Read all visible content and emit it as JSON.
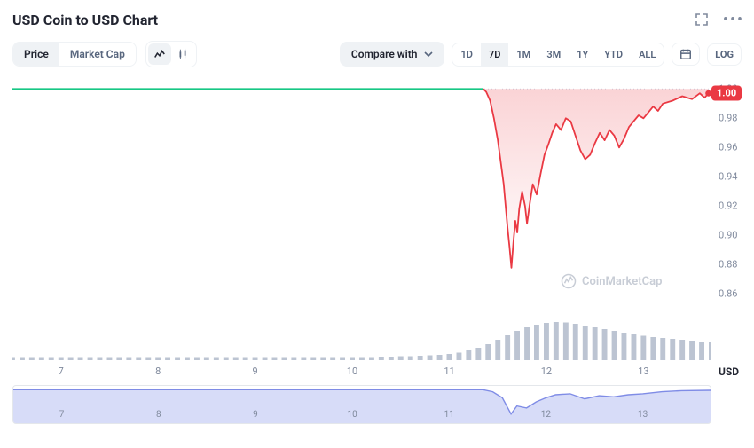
{
  "header": {
    "title": "USD Coin to USD Chart"
  },
  "toolbar": {
    "view_tabs": [
      "Price",
      "Market Cap"
    ],
    "view_active": "Price",
    "compare_label": "Compare with",
    "ranges": [
      "1D",
      "7D",
      "1M",
      "3M",
      "1Y",
      "YTD",
      "ALL"
    ],
    "range_active": "7D",
    "scale_label": "LOG"
  },
  "chart": {
    "type": "line",
    "x_domain": [
      6.5,
      13.7
    ],
    "y_domain": [
      0.85,
      1.005
    ],
    "ylabel_side": "right",
    "y_ticks": [
      1.0,
      0.98,
      0.96,
      0.94,
      0.92,
      0.9,
      0.88,
      0.86
    ],
    "x_ticks": [
      7,
      8,
      9,
      10,
      11,
      12,
      13
    ],
    "current_price_label": "1.00",
    "watermark_text": "CoinMarketCap",
    "colors": {
      "flat_line": "#16c784",
      "main_line": "#ea3943",
      "area_top": "rgba(234,57,67,0.22)",
      "area_bottom": "rgba(234,57,67,0.00)",
      "grid_dots": "#cfd6e4",
      "volume_bar": "#a6b0c3",
      "minimap_fill": "#b7bff2",
      "minimap_line": "#7f8ce6",
      "background": "#ffffff"
    },
    "green_flat_value": 1.0,
    "red_start_x": 11.35,
    "red_points": [
      [
        11.35,
        1.0
      ],
      [
        11.38,
        0.998
      ],
      [
        11.42,
        0.992
      ],
      [
        11.46,
        0.98
      ],
      [
        11.5,
        0.965
      ],
      [
        11.53,
        0.95
      ],
      [
        11.56,
        0.935
      ],
      [
        11.58,
        0.92
      ],
      [
        11.6,
        0.905
      ],
      [
        11.62,
        0.892
      ],
      [
        11.64,
        0.878
      ],
      [
        11.66,
        0.895
      ],
      [
        11.68,
        0.91
      ],
      [
        11.7,
        0.902
      ],
      [
        11.72,
        0.918
      ],
      [
        11.75,
        0.93
      ],
      [
        11.78,
        0.92
      ],
      [
        11.8,
        0.908
      ],
      [
        11.83,
        0.922
      ],
      [
        11.86,
        0.935
      ],
      [
        11.9,
        0.928
      ],
      [
        11.94,
        0.942
      ],
      [
        11.98,
        0.955
      ],
      [
        12.02,
        0.962
      ],
      [
        12.06,
        0.97
      ],
      [
        12.1,
        0.976
      ],
      [
        12.15,
        0.972
      ],
      [
        12.2,
        0.98
      ],
      [
        12.25,
        0.978
      ],
      [
        12.3,
        0.968
      ],
      [
        12.35,
        0.958
      ],
      [
        12.4,
        0.952
      ],
      [
        12.45,
        0.955
      ],
      [
        12.5,
        0.963
      ],
      [
        12.55,
        0.97
      ],
      [
        12.6,
        0.965
      ],
      [
        12.65,
        0.972
      ],
      [
        12.7,
        0.968
      ],
      [
        12.75,
        0.96
      ],
      [
        12.8,
        0.966
      ],
      [
        12.85,
        0.974
      ],
      [
        12.9,
        0.978
      ],
      [
        12.95,
        0.982
      ],
      [
        13.0,
        0.98
      ],
      [
        13.05,
        0.984
      ],
      [
        13.1,
        0.988
      ],
      [
        13.15,
        0.985
      ],
      [
        13.2,
        0.99
      ],
      [
        13.3,
        0.992
      ],
      [
        13.4,
        0.995
      ],
      [
        13.5,
        0.993
      ],
      [
        13.58,
        0.997
      ],
      [
        13.63,
        0.994
      ],
      [
        13.67,
        0.997
      ]
    ],
    "volume_y_domain": [
      0,
      1
    ],
    "volume_bars": [
      [
        6.5,
        0.07
      ],
      [
        6.6,
        0.07
      ],
      [
        6.7,
        0.07
      ],
      [
        6.8,
        0.07
      ],
      [
        6.9,
        0.07
      ],
      [
        7.0,
        0.07
      ],
      [
        7.1,
        0.07
      ],
      [
        7.2,
        0.07
      ],
      [
        7.3,
        0.07
      ],
      [
        7.4,
        0.07
      ],
      [
        7.5,
        0.07
      ],
      [
        7.6,
        0.07
      ],
      [
        7.7,
        0.07
      ],
      [
        7.8,
        0.07
      ],
      [
        7.9,
        0.07
      ],
      [
        8.0,
        0.07
      ],
      [
        8.1,
        0.07
      ],
      [
        8.2,
        0.07
      ],
      [
        8.3,
        0.07
      ],
      [
        8.4,
        0.07
      ],
      [
        8.5,
        0.07
      ],
      [
        8.6,
        0.07
      ],
      [
        8.7,
        0.07
      ],
      [
        8.8,
        0.07
      ],
      [
        8.9,
        0.07
      ],
      [
        9.0,
        0.07
      ],
      [
        9.1,
        0.07
      ],
      [
        9.2,
        0.07
      ],
      [
        9.3,
        0.07
      ],
      [
        9.4,
        0.07
      ],
      [
        9.5,
        0.07
      ],
      [
        9.6,
        0.07
      ],
      [
        9.7,
        0.07
      ],
      [
        9.8,
        0.07
      ],
      [
        9.9,
        0.07
      ],
      [
        10.0,
        0.07
      ],
      [
        10.1,
        0.07
      ],
      [
        10.2,
        0.07
      ],
      [
        10.3,
        0.08
      ],
      [
        10.4,
        0.08
      ],
      [
        10.5,
        0.09
      ],
      [
        10.6,
        0.09
      ],
      [
        10.7,
        0.1
      ],
      [
        10.8,
        0.11
      ],
      [
        10.9,
        0.12
      ],
      [
        11.0,
        0.14
      ],
      [
        11.1,
        0.17
      ],
      [
        11.2,
        0.22
      ],
      [
        11.3,
        0.28
      ],
      [
        11.4,
        0.36
      ],
      [
        11.5,
        0.46
      ],
      [
        11.6,
        0.56
      ],
      [
        11.7,
        0.66
      ],
      [
        11.8,
        0.74
      ],
      [
        11.9,
        0.8
      ],
      [
        12.0,
        0.84
      ],
      [
        12.1,
        0.86
      ],
      [
        12.2,
        0.85
      ],
      [
        12.3,
        0.82
      ],
      [
        12.4,
        0.78
      ],
      [
        12.5,
        0.74
      ],
      [
        12.6,
        0.7
      ],
      [
        12.7,
        0.66
      ],
      [
        12.8,
        0.62
      ],
      [
        12.9,
        0.58
      ],
      [
        13.0,
        0.55
      ],
      [
        13.1,
        0.52
      ],
      [
        13.2,
        0.5
      ],
      [
        13.3,
        0.48
      ],
      [
        13.4,
        0.46
      ],
      [
        13.5,
        0.44
      ],
      [
        13.6,
        0.42
      ],
      [
        13.7,
        0.4
      ]
    ]
  },
  "x_axis_row": {
    "ticks": [
      7,
      8,
      9,
      10,
      11,
      12,
      13
    ],
    "currency_label": "USD"
  },
  "minimap": {
    "x_domain": [
      6.5,
      13.7
    ],
    "y_domain": [
      0.87,
      1.01
    ],
    "x_ticks": [
      7,
      8,
      9,
      10,
      11,
      12,
      13
    ],
    "points": [
      [
        6.5,
        1.0
      ],
      [
        10.0,
        1.0
      ],
      [
        11.35,
        1.0
      ],
      [
        11.45,
        0.99
      ],
      [
        11.55,
        0.96
      ],
      [
        11.64,
        0.88
      ],
      [
        11.7,
        0.92
      ],
      [
        11.8,
        0.91
      ],
      [
        11.9,
        0.94
      ],
      [
        12.0,
        0.96
      ],
      [
        12.1,
        0.975
      ],
      [
        12.25,
        0.98
      ],
      [
        12.4,
        0.955
      ],
      [
        12.55,
        0.97
      ],
      [
        12.7,
        0.965
      ],
      [
        12.85,
        0.975
      ],
      [
        13.0,
        0.98
      ],
      [
        13.2,
        0.99
      ],
      [
        13.4,
        0.995
      ],
      [
        13.7,
        0.997
      ]
    ]
  }
}
